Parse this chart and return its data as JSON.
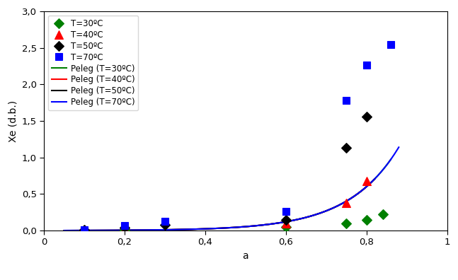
{
  "title": "",
  "xlabel": "a",
  "ylabel": "Xe (d.b.)",
  "xlim": [
    0,
    1.0
  ],
  "ylim": [
    0,
    3.0
  ],
  "xticks": [
    0,
    0.2,
    0.4,
    0.6,
    0.8,
    1.0
  ],
  "yticks": [
    0.0,
    0.5,
    1.0,
    1.5,
    2.0,
    2.5,
    3.0
  ],
  "xtick_labels": [
    "0",
    "0,2",
    "0,4",
    "0,6",
    "0,8",
    "1"
  ],
  "ytick_labels": [
    "0,0",
    "0,5",
    "1,0",
    "1,5",
    "2,0",
    "2,5",
    "3,0"
  ],
  "exp_T30": {
    "x": [
      0.2,
      0.6,
      0.75,
      0.8,
      0.84
    ],
    "y": [
      0.015,
      0.05,
      0.1,
      0.15,
      0.22
    ],
    "color": "#008000",
    "marker": "D",
    "label": "T=30ºC"
  },
  "exp_T40": {
    "x": [
      0.2,
      0.6,
      0.75,
      0.8
    ],
    "y": [
      0.02,
      0.1,
      0.38,
      0.68
    ],
    "color": "#FF0000",
    "marker": "^",
    "label": "T=40ºC"
  },
  "exp_T50": {
    "x": [
      0.1,
      0.2,
      0.3,
      0.6,
      0.75,
      0.8
    ],
    "y": [
      0.01,
      0.04,
      0.08,
      0.15,
      1.13,
      1.56
    ],
    "color": "#000000",
    "marker": "D",
    "label": "T=50ºC"
  },
  "exp_T70": {
    "x": [
      0.1,
      0.2,
      0.3,
      0.6,
      0.75,
      0.8,
      0.86
    ],
    "y": [
      0.01,
      0.07,
      0.13,
      0.26,
      1.78,
      2.27,
      2.55
    ],
    "color": "#0000FF",
    "marker": "s",
    "label": "T=70ºC"
  },
  "colors": {
    "T30": "#008000",
    "T40": "#FF0000",
    "T50": "#000000",
    "T70": "#0000FF"
  },
  "markers": {
    "T30": "D",
    "T40": "^",
    "T50": "D",
    "T70": "s"
  },
  "marker_sizes": {
    "T30": 7,
    "T40": 8,
    "T50": 7,
    "T70": 7
  },
  "curve_labels": {
    "T30": "Peleg (T=30ºC)",
    "T40": "Peleg (T=40ºC)",
    "T50": "Peleg (T=50ºC)",
    "T70": "Peleg (T=70ºC)"
  },
  "exp_labels": {
    "T30": "T=30ºC",
    "T40": "T=40ºC",
    "T50": "T=50ºC",
    "T70": "T=70ºC"
  },
  "curve_end": {
    "T30": 0.86,
    "T40": 0.82,
    "T50": 0.82,
    "T70": 0.88
  },
  "legend_fontsize": 8.5,
  "axis_fontsize": 10,
  "tick_fontsize": 9.5
}
